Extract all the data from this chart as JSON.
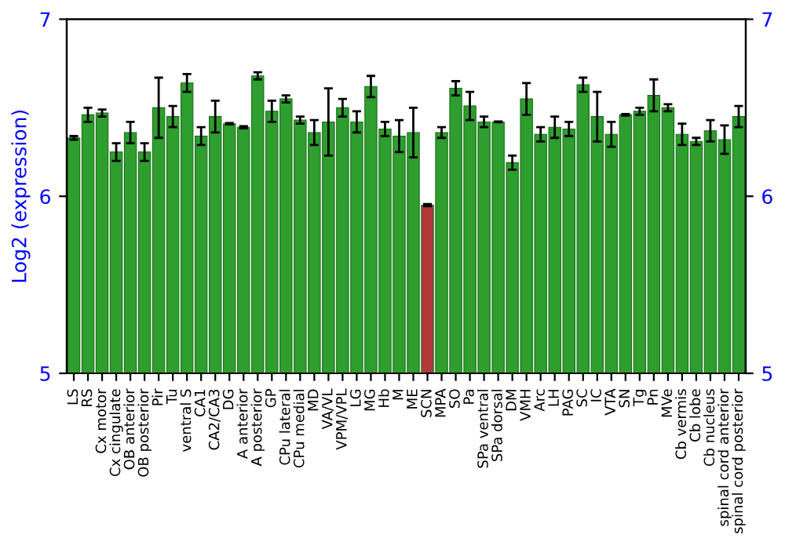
{
  "chart_data": {
    "type": "bar",
    "ylabel": "Log2 (expression)",
    "categories": [
      "LS",
      "RS",
      "Cx motor",
      "Cx cingulate",
      "OB anterior",
      "OB posterior",
      "Pir",
      "Tu",
      "ventral S",
      "CA1",
      "CA2/CA3",
      "DG",
      "A anterior",
      "A posterior",
      "GP",
      "CPu lateral",
      "CPu medial",
      "MD",
      "VA/VL",
      "VPM/VPL",
      "LG",
      "MG",
      "Hb",
      "M",
      "ME",
      "SCN",
      "MPA",
      "SO",
      "Pa",
      "SPa ventral",
      "SPa dorsal",
      "DM",
      "VMH",
      "Arc",
      "LH",
      "PAG",
      "SC",
      "IC",
      "VTA",
      "SN",
      "Tg",
      "Pn",
      "MVe",
      "Cb vermis",
      "Cb lobe",
      "Cb nucleus",
      "spinal cord anterior",
      "spinal cord posterior"
    ],
    "values": [
      6.33,
      6.46,
      6.47,
      6.25,
      6.36,
      6.25,
      6.5,
      6.45,
      6.64,
      6.34,
      6.45,
      6.41,
      6.39,
      6.68,
      6.48,
      6.55,
      6.43,
      6.36,
      6.42,
      6.5,
      6.42,
      6.62,
      6.38,
      6.34,
      6.36,
      5.95,
      6.36,
      6.61,
      6.51,
      6.42,
      6.42,
      6.19,
      6.55,
      6.35,
      6.39,
      6.38,
      6.63,
      6.45,
      6.35,
      6.46,
      6.48,
      6.57,
      6.5,
      6.35,
      6.31,
      6.37,
      6.32,
      6.45
    ],
    "errors": [
      0.01,
      0.04,
      0.02,
      0.05,
      0.06,
      0.05,
      0.17,
      0.06,
      0.05,
      0.05,
      0.09,
      0.004,
      0.006,
      0.02,
      0.06,
      0.02,
      0.02,
      0.07,
      0.19,
      0.05,
      0.06,
      0.06,
      0.04,
      0.09,
      0.14,
      0.006,
      0.03,
      0.04,
      0.08,
      0.03,
      0.002,
      0.04,
      0.09,
      0.04,
      0.06,
      0.04,
      0.04,
      0.14,
      0.07,
      0.004,
      0.02,
      0.09,
      0.02,
      0.06,
      0.02,
      0.06,
      0.08,
      0.06
    ],
    "colors": [
      "#2e9e2e",
      "#2e9e2e",
      "#2e9e2e",
      "#2e9e2e",
      "#2e9e2e",
      "#2e9e2e",
      "#2e9e2e",
      "#2e9e2e",
      "#2e9e2e",
      "#2e9e2e",
      "#2e9e2e",
      "#2e9e2e",
      "#2e9e2e",
      "#2e9e2e",
      "#2e9e2e",
      "#2e9e2e",
      "#2e9e2e",
      "#2e9e2e",
      "#2e9e2e",
      "#2e9e2e",
      "#2e9e2e",
      "#2e9e2e",
      "#2e9e2e",
      "#2e9e2e",
      "#2e9e2e",
      "#b03a3a",
      "#2e9e2e",
      "#2e9e2e",
      "#2e9e2e",
      "#2e9e2e",
      "#2e9e2e",
      "#2e9e2e",
      "#2e9e2e",
      "#2e9e2e",
      "#2e9e2e",
      "#2e9e2e",
      "#2e9e2e",
      "#2e9e2e",
      "#2e9e2e",
      "#2e9e2e",
      "#2e9e2e",
      "#2e9e2e",
      "#2e9e2e",
      "#2e9e2e",
      "#2e9e2e",
      "#2e9e2e",
      "#2e9e2e",
      "#2e9e2e"
    ],
    "ylim": [
      5,
      7
    ],
    "yticks": [
      5,
      6,
      7
    ],
    "y2lim": [
      5,
      7
    ],
    "y2ticks": [
      5,
      6,
      7
    ],
    "grid": false
  }
}
